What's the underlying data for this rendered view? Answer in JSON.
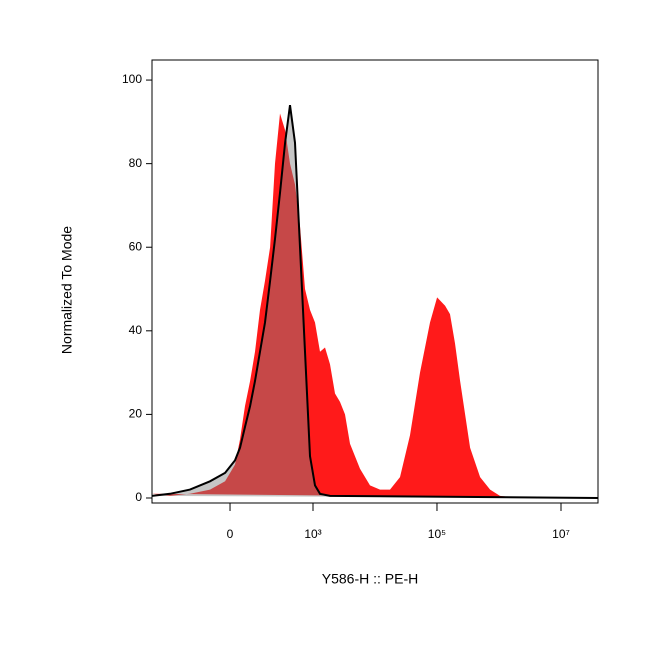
{
  "chart_data": {
    "type": "histogram-overlay",
    "xlabel": "Y586-H :: PE-H",
    "ylabel": "Normalized To Mode",
    "xscale": "biexponential",
    "xlim": [
      -831,
      39500000
    ],
    "ylim": [
      -1.2,
      104.8
    ],
    "xticks": [
      0,
      {
        "value": 1000,
        "label": "10³"
      },
      {
        "value": 100000,
        "label": "10⁵"
      },
      {
        "value": 10000000,
        "label": "10⁷"
      }
    ],
    "yticks": [
      0,
      20,
      40,
      60,
      80,
      100
    ],
    "series": [
      {
        "color": "#ff1a1a",
        "x": [
          -831,
          -422,
          -193,
          -75,
          -17,
          17,
          35,
          54,
          75,
          98,
          125,
          156,
          193,
          236,
          287,
          349,
          422,
          510,
          615,
          742,
          895,
          1079,
          1299,
          1565,
          1884,
          2270,
          2734,
          3290,
          3961,
          4770,
          5744,
          8330,
          12070,
          17500,
          25370,
          36770,
          53300,
          77280,
          100300,
          135000,
          162400,
          195600,
          235600,
          341500,
          495000,
          717600,
          1040000,
          2185000,
          39500000
        ],
        "values": [
          1,
          0.5,
          1,
          2,
          4,
          8,
          14,
          22,
          28,
          35,
          45,
          52,
          60,
          80,
          92,
          88,
          80,
          75,
          65,
          50,
          45,
          42,
          35,
          36,
          32,
          25,
          23,
          20,
          13,
          10,
          7,
          3,
          2,
          2,
          5,
          15,
          30,
          42,
          48,
          46,
          44,
          37,
          28,
          12,
          5,
          2,
          0.5,
          0,
          0
        ]
      },
      {
        "color": "#808080",
        "x": [
          -831,
          -422,
          -193,
          -75,
          -17,
          17,
          35,
          54,
          75,
          98,
          125,
          156,
          193,
          236,
          287,
          349,
          422,
          510,
          615,
          742,
          895,
          1079,
          1299,
          1884,
          39500000
        ],
        "values": [
          0.5,
          1,
          2,
          4,
          6,
          9,
          12,
          17,
          22,
          28,
          35,
          42,
          52,
          62,
          73,
          85,
          94,
          85,
          60,
          35,
          10,
          3,
          1,
          0.5,
          0
        ]
      }
    ]
  }
}
